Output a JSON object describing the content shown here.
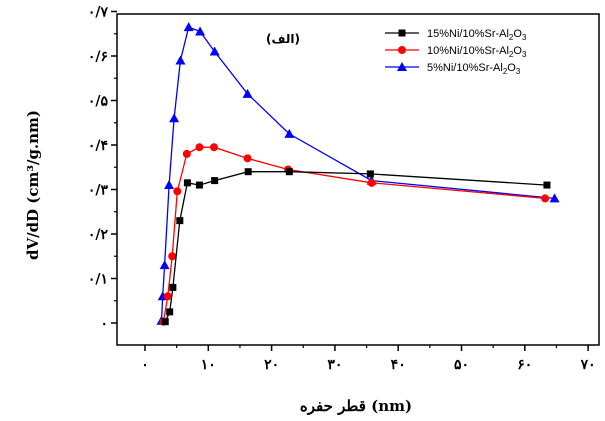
{
  "chart_data": {
    "type": "line",
    "title": "",
    "annotation": "(الف)",
    "xlabel": "قطر حفره (nm)",
    "ylabel": "dV/dD (cm³/g.nm)",
    "xlim": [
      0,
      70
    ],
    "ylim": [
      0,
      0.7
    ],
    "x_ticks": [
      0,
      10,
      20,
      30,
      40,
      50,
      60,
      70
    ],
    "x_tick_labels": [
      "۰",
      "۱۰",
      "۲۰",
      "۳۰",
      "۴۰",
      "۵۰",
      "۶۰",
      "۷۰"
    ],
    "y_ticks": [
      0,
      0.1,
      0.2,
      0.3,
      0.4,
      0.5,
      0.6,
      0.7
    ],
    "y_tick_labels": [
      "۰",
      "۰/۱",
      "۰/۲",
      "۰/۳",
      "۰/۴",
      "۰/۵",
      "۰/۶",
      "۰/۷"
    ],
    "grid": false,
    "legend_position": "top-right",
    "series": [
      {
        "name": "15%Ni/10%Sr-Al2O3",
        "legend_main": "15%Ni/10%Sr-Al",
        "legend_sub1": "2",
        "legend_mid": "O",
        "legend_sub2": "3",
        "color": "#000000",
        "marker": "square",
        "x": [
          3.2,
          3.9,
          4.4,
          5.5,
          6.7,
          8.6,
          11.0,
          16.3,
          22.8,
          35.6,
          63.5
        ],
        "y": [
          0.003,
          0.025,
          0.08,
          0.23,
          0.315,
          0.31,
          0.32,
          0.34,
          0.34,
          0.335,
          0.31
        ]
      },
      {
        "name": "10%Ni/10%Sr-Al2O3",
        "legend_main": "10%Ni/10%Sr-Al",
        "legend_sub1": "2",
        "legend_mid": "O",
        "legend_sub2": "3",
        "color": "#ff0000",
        "marker": "circle",
        "x": [
          2.9,
          3.6,
          4.3,
          5.1,
          6.6,
          8.6,
          10.9,
          16.2,
          22.6,
          35.8,
          63.2
        ],
        "y": [
          0.003,
          0.06,
          0.15,
          0.296,
          0.38,
          0.395,
          0.395,
          0.37,
          0.345,
          0.315,
          0.28
        ]
      },
      {
        "name": "5%Ni/10%Sr-Al2O3",
        "legend_main": "5%Ni/10%Sr-Al",
        "legend_sub1": "2",
        "legend_mid": "O",
        "legend_sub2": "3",
        "color": "#0000ff",
        "marker": "triangle",
        "x": [
          2.6,
          2.8,
          3.1,
          3.8,
          4.6,
          5.6,
          6.9,
          8.7,
          11.0,
          16.2,
          22.8,
          35.8,
          64.7
        ],
        "y": [
          0.005,
          0.06,
          0.13,
          0.31,
          0.46,
          0.59,
          0.665,
          0.655,
          0.61,
          0.515,
          0.425,
          0.32,
          0.28
        ]
      }
    ]
  }
}
